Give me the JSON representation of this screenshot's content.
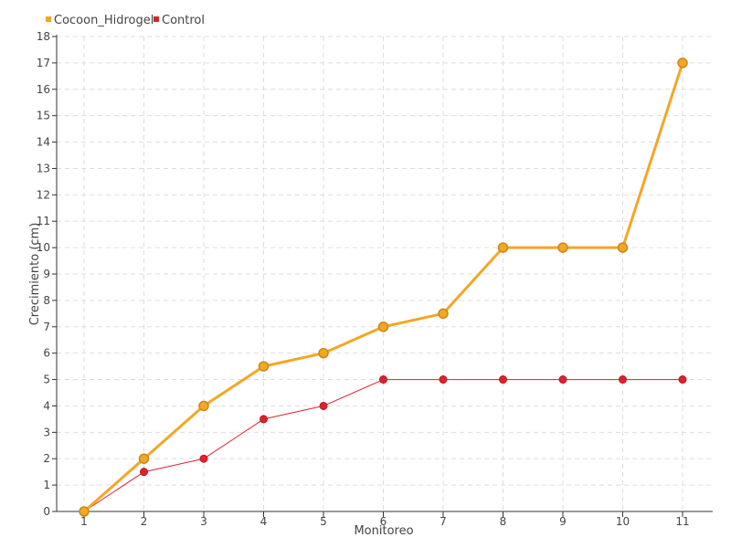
{
  "chart_data": {
    "type": "line",
    "title": "",
    "xlabel": "Monitoreo",
    "ylabel": "Crecimiento (cm)",
    "categories": [
      "1",
      "2",
      "3",
      "4",
      "5",
      "6",
      "7",
      "8",
      "9",
      "10",
      "11"
    ],
    "ylim": [
      0,
      18
    ],
    "yticks": [
      "0",
      "1",
      "2",
      "3",
      "4",
      "5",
      "6",
      "7",
      "8",
      "9",
      "10",
      "11",
      "12",
      "13",
      "14",
      "15",
      "16",
      "17",
      "18"
    ],
    "grid": true,
    "legend_position": "top-left",
    "series": [
      {
        "name": "Cocoon_Hidrogel",
        "color": "#F5A623",
        "marker_edge": "#C58A1E",
        "values": [
          0,
          2,
          4,
          5.5,
          6,
          7,
          7.5,
          10,
          10,
          10,
          17
        ]
      },
      {
        "name": "Control",
        "color": "#E0202E",
        "marker_edge": "#B81A25",
        "values": [
          0,
          1.5,
          2,
          3.5,
          4,
          5,
          5,
          5,
          5,
          5,
          5
        ]
      }
    ]
  }
}
